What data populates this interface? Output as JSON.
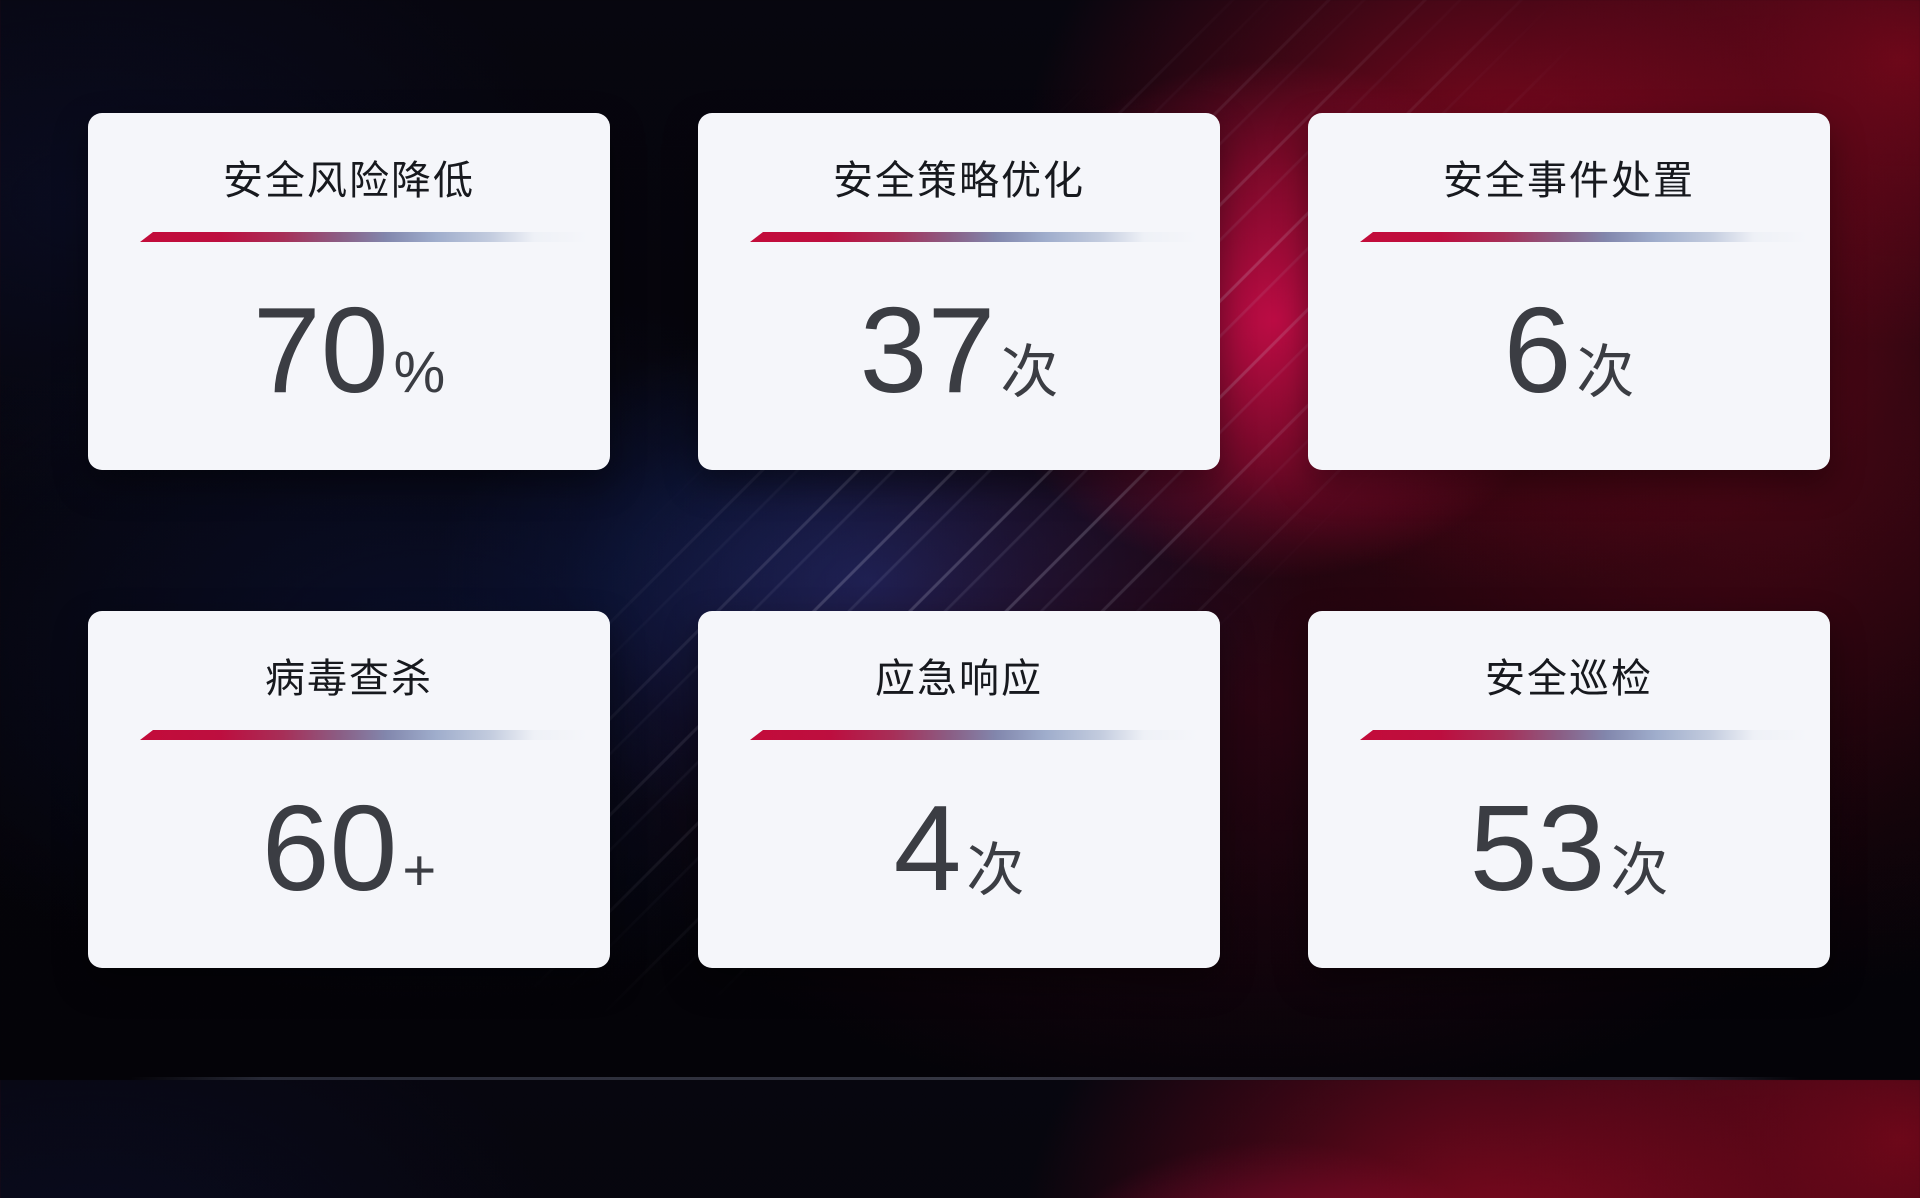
{
  "dashboard": {
    "cards": [
      {
        "title": "安全风险降低",
        "value": "70",
        "unit": "%"
      },
      {
        "title": "安全策略优化",
        "value": "37",
        "unit": "次"
      },
      {
        "title": "安全事件处置",
        "value": "6",
        "unit": "次"
      },
      {
        "title": "病毒查杀",
        "value": "60",
        "unit": "+"
      },
      {
        "title": "应急响应",
        "value": "4",
        "unit": "次"
      },
      {
        "title": "安全巡检",
        "value": "53",
        "unit": "次"
      }
    ],
    "colors": {
      "card_background": "#f5f6fa",
      "title_text": "#17191e",
      "value_text": "#3b3d43",
      "divider_red": "#c30c3a",
      "divider_steel_blue": "#9fadcc",
      "background_crimson_glow": "#cd0d4b",
      "background_dark_red": "#6e0718",
      "background_navy": "#0c1643",
      "background_blue_glow": "#2140a0",
      "background_base": "#050409"
    }
  }
}
